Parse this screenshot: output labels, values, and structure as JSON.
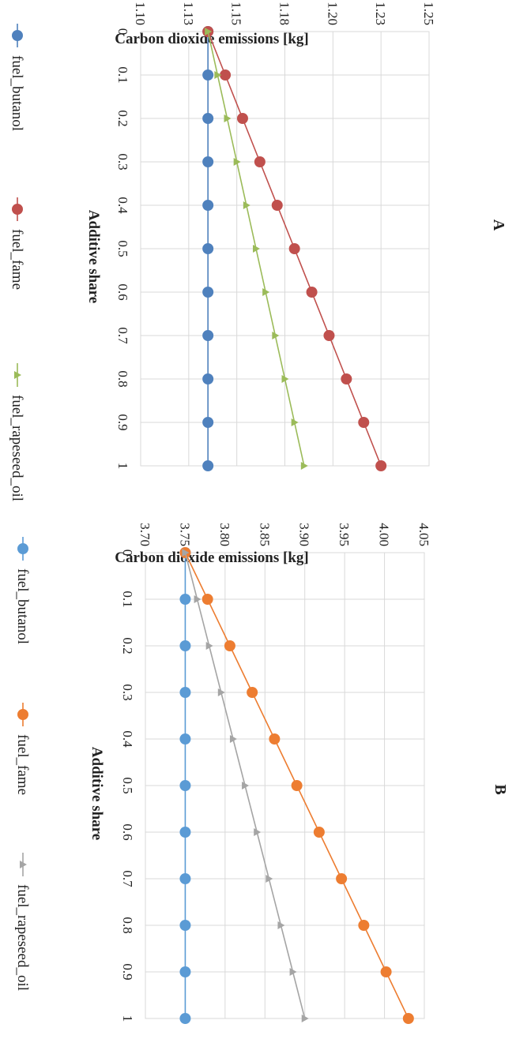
{
  "chart_data": [
    {
      "type": "line",
      "panel": "A",
      "xlabel": "Additive share",
      "ylabel": "Carbon dioxide emissions [kg]",
      "x": [
        0,
        0.1,
        0.2,
        0.3,
        0.4,
        0.5,
        0.6,
        0.7,
        0.8,
        0.9,
        1
      ],
      "x_ticks": [
        "0",
        "0.1",
        "0.2",
        "0.3",
        "0.4",
        "0.5",
        "0.6",
        "0.7",
        "0.8",
        "0.9",
        "1"
      ],
      "ylim": [
        1.1,
        1.25
      ],
      "y_ticks": [
        "1.10",
        "1.13",
        "1.15",
        "1.18",
        "1.20",
        "1.23",
        "1.25"
      ],
      "grid": true,
      "legend_position": "bottom",
      "series": [
        {
          "name": "fuel_butanol",
          "color": "#4f81bd",
          "marker": "circle",
          "values": [
            1.135,
            1.135,
            1.135,
            1.135,
            1.135,
            1.135,
            1.135,
            1.135,
            1.135,
            1.135,
            1.135
          ]
        },
        {
          "name": "fuel_fame",
          "color": "#c0504d",
          "marker": "circle",
          "values": [
            1.135,
            1.144,
            1.153,
            1.162,
            1.171,
            1.18,
            1.189,
            1.198,
            1.207,
            1.216,
            1.225
          ]
        },
        {
          "name": "fuel_rapeseed_oil",
          "color": "#9bbb59",
          "marker": "triangle",
          "values": [
            1.135,
            1.14,
            1.145,
            1.15,
            1.155,
            1.16,
            1.165,
            1.17,
            1.175,
            1.18,
            1.185
          ]
        }
      ]
    },
    {
      "type": "line",
      "panel": "B",
      "xlabel": "Additive share",
      "ylabel": "Carbon dioxide emissions [kg]",
      "x": [
        0,
        0.1,
        0.2,
        0.3,
        0.4,
        0.5,
        0.6,
        0.7,
        0.8,
        0.9,
        1
      ],
      "x_ticks": [
        "0",
        "0.1",
        "0.2",
        "0.3",
        "0.4",
        "0.5",
        "0.6",
        "0.7",
        "0.8",
        "0.9",
        "1"
      ],
      "ylim": [
        3.7,
        4.05
      ],
      "y_ticks": [
        "3.70",
        "3.75",
        "3.80",
        "3.85",
        "3.90",
        "3.95",
        "4.00",
        "4.05"
      ],
      "grid": true,
      "legend_position": "bottom",
      "series": [
        {
          "name": "fuel_butanol",
          "color": "#5b9bd5",
          "marker": "circle",
          "values": [
            3.75,
            3.75,
            3.75,
            3.75,
            3.75,
            3.75,
            3.75,
            3.75,
            3.75,
            3.75,
            3.75
          ]
        },
        {
          "name": "fuel_fame",
          "color": "#ed7d31",
          "marker": "circle",
          "values": [
            3.75,
            3.778,
            3.806,
            3.834,
            3.862,
            3.89,
            3.918,
            3.946,
            3.974,
            4.002,
            4.03
          ]
        },
        {
          "name": "fuel_rapeseed_oil",
          "color": "#a5a5a5",
          "marker": "triangle",
          "values": [
            3.75,
            3.765,
            3.78,
            3.795,
            3.81,
            3.825,
            3.84,
            3.855,
            3.87,
            3.885,
            3.9
          ]
        }
      ]
    }
  ]
}
